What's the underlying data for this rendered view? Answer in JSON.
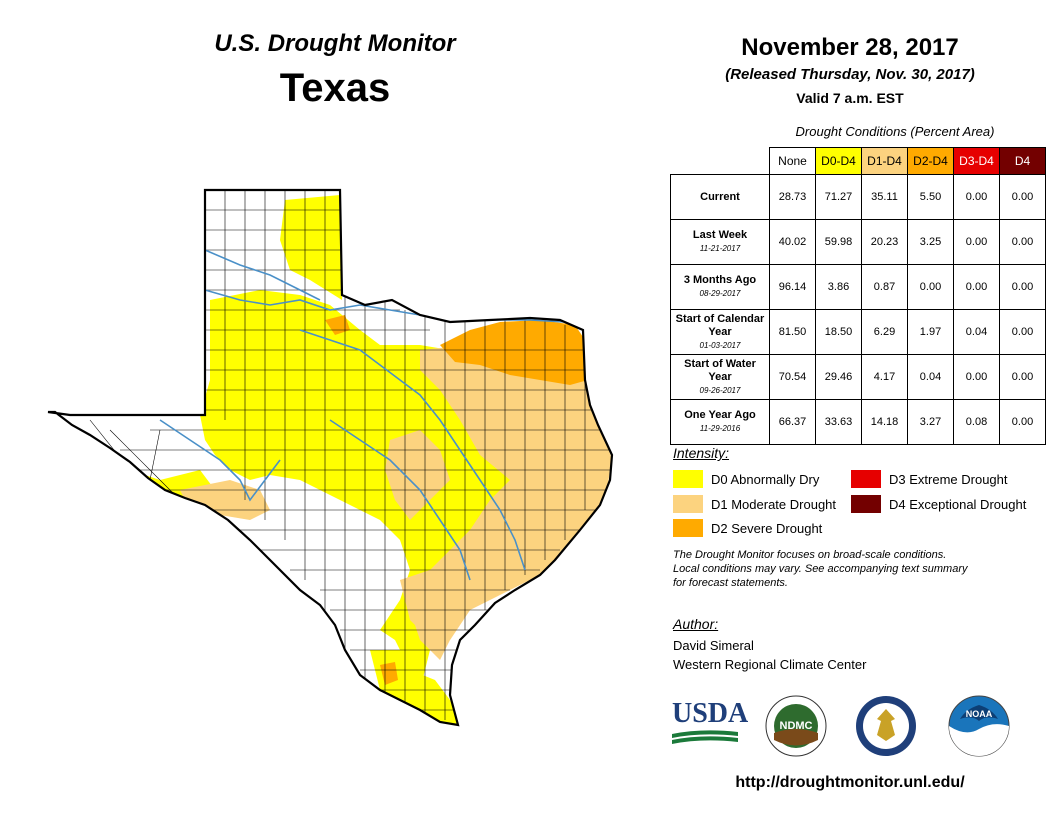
{
  "header": {
    "product": "U.S. Drought Monitor",
    "state": "Texas",
    "date": "November 28, 2017",
    "released": "(Released Thursday, Nov. 30, 2017)",
    "valid": "Valid 7 a.m. EST"
  },
  "conditions_table": {
    "title": "Drought Conditions (Percent Area)",
    "columns": [
      "None",
      "D0-D4",
      "D1-D4",
      "D2-D4",
      "D3-D4",
      "D4"
    ],
    "column_colors": [
      "#ffffff",
      "#ffff00",
      "#fcd37f",
      "#ffaa00",
      "#e60000",
      "#730000"
    ],
    "column_text_colors": [
      "#000000",
      "#000000",
      "#000000",
      "#000000",
      "#ffffff",
      "#ffffff"
    ],
    "rows": [
      {
        "label": "Current",
        "date": "",
        "values": [
          "28.73",
          "71.27",
          "35.11",
          "5.50",
          "0.00",
          "0.00"
        ]
      },
      {
        "label": "Last Week",
        "date": "11-21-2017",
        "values": [
          "40.02",
          "59.98",
          "20.23",
          "3.25",
          "0.00",
          "0.00"
        ]
      },
      {
        "label": "3 Months Ago",
        "date": "08-29-2017",
        "values": [
          "96.14",
          "3.86",
          "0.87",
          "0.00",
          "0.00",
          "0.00"
        ]
      },
      {
        "label": "Start of Calendar Year",
        "date": "01-03-2017",
        "values": [
          "81.50",
          "18.50",
          "6.29",
          "1.97",
          "0.04",
          "0.00"
        ]
      },
      {
        "label": "Start of Water Year",
        "date": "09-26-2017",
        "values": [
          "70.54",
          "29.46",
          "4.17",
          "0.04",
          "0.00",
          "0.00"
        ]
      },
      {
        "label": "One Year Ago",
        "date": "11-29-2016",
        "values": [
          "66.37",
          "33.63",
          "14.18",
          "3.27",
          "0.08",
          "0.00"
        ]
      }
    ]
  },
  "legend": {
    "title": "Intensity:",
    "items": [
      {
        "label": "D0 Abnormally Dry",
        "color": "#ffff00"
      },
      {
        "label": "D1 Moderate Drought",
        "color": "#fcd37f"
      },
      {
        "label": "D2 Severe Drought",
        "color": "#ffaa00"
      },
      {
        "label": "D3 Extreme Drought",
        "color": "#e60000"
      },
      {
        "label": "D4 Exceptional Drought",
        "color": "#730000"
      }
    ]
  },
  "note": {
    "line1": "The Drought Monitor focuses on broad-scale conditions.",
    "line2": "Local conditions may vary. See accompanying text summary",
    "line3": "for forecast statements."
  },
  "author": {
    "title": "Author:",
    "name": "David Simeral",
    "org": "Western Regional Climate Center"
  },
  "logos": {
    "usda": "USDA",
    "ndmc": "NDMC",
    "noaa": "NOAA"
  },
  "url": "http://droughtmonitor.unl.edu/",
  "colors": {
    "river": "#4a90c8",
    "border": "#000000",
    "county": "#000000"
  }
}
